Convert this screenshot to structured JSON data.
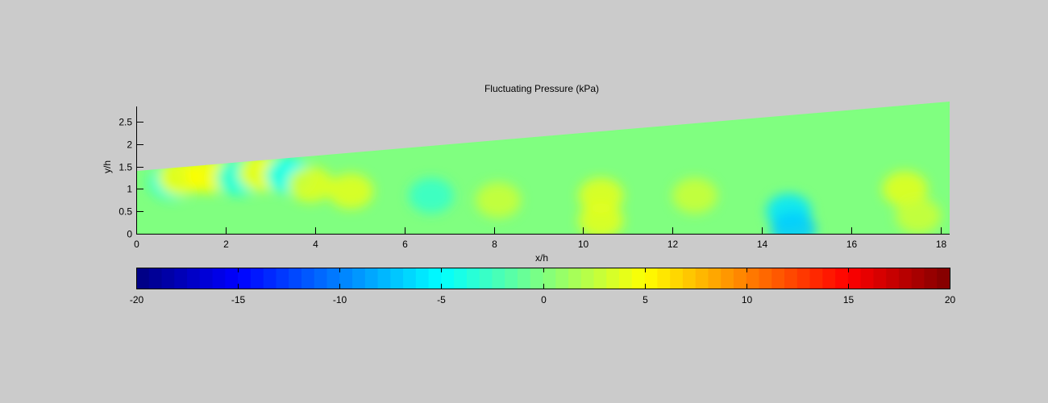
{
  "chart_data": {
    "type": "heatmap",
    "title": "Fluctuating Pressure (kPa)",
    "xlabel": "x/h",
    "ylabel": "y/h",
    "xlim": [
      0,
      18.2
    ],
    "ylim": [
      0,
      2.95
    ],
    "x_ticks": [
      0,
      2,
      4,
      6,
      8,
      10,
      12,
      14,
      16,
      18
    ],
    "y_ticks": [
      0,
      0.5,
      1,
      1.5,
      2,
      2.5
    ],
    "domain_top_boundary": [
      [
        0,
        1.4
      ],
      [
        18.2,
        2.95
      ]
    ],
    "colorbar": {
      "colormap": "jet",
      "clim": [
        -20,
        20
      ],
      "ticks": [
        -20,
        -15,
        -10,
        -5,
        0,
        5,
        10,
        15,
        20
      ],
      "levels": 64,
      "orientation": "horizontal"
    },
    "background_value": 0,
    "features": [
      {
        "x": 0.8,
        "y": 1.15,
        "value": -4
      },
      {
        "x": 1.0,
        "y": 1.25,
        "value": 5
      },
      {
        "x": 1.6,
        "y": 1.3,
        "value": 5
      },
      {
        "x": 2.3,
        "y": 1.25,
        "value": -4
      },
      {
        "x": 2.8,
        "y": 1.35,
        "value": 5
      },
      {
        "x": 3.4,
        "y": 1.3,
        "value": -5
      },
      {
        "x": 3.9,
        "y": 1.1,
        "value": 4
      },
      {
        "x": 4.8,
        "y": 0.95,
        "value": 4
      },
      {
        "x": 6.6,
        "y": 0.85,
        "value": -3
      },
      {
        "x": 8.1,
        "y": 0.75,
        "value": 3
      },
      {
        "x": 10.4,
        "y": 0.85,
        "value": 4
      },
      {
        "x": 10.4,
        "y": 0.3,
        "value": 4
      },
      {
        "x": 12.5,
        "y": 0.85,
        "value": 3
      },
      {
        "x": 14.6,
        "y": 0.5,
        "value": -6
      },
      {
        "x": 14.7,
        "y": 0.1,
        "value": -7
      },
      {
        "x": 17.2,
        "y": 1.0,
        "value": 4
      },
      {
        "x": 17.5,
        "y": 0.4,
        "value": 3
      }
    ]
  }
}
